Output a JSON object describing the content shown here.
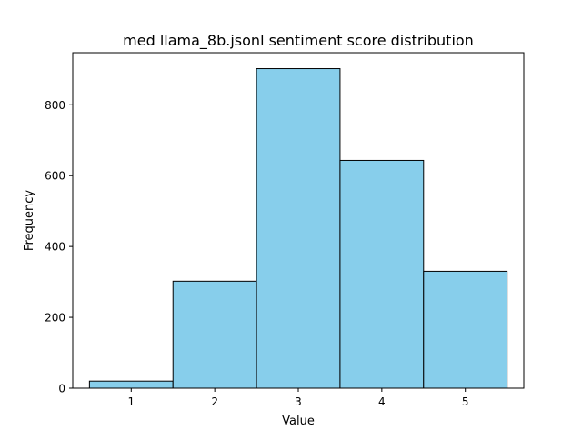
{
  "chart_data": {
    "type": "bar",
    "title": "med llama_8b.jsonl sentiment score distribution",
    "xlabel": "Value",
    "ylabel": "Frequency",
    "categories": [
      "1",
      "2",
      "3",
      "4",
      "5"
    ],
    "values": [
      20,
      302,
      902,
      643,
      330
    ],
    "xlim": [
      0.3,
      5.7
    ],
    "ylim": [
      0,
      947
    ],
    "yticks": [
      0,
      200,
      400,
      600,
      800
    ],
    "xticks": [
      1,
      2,
      3,
      4,
      5
    ],
    "grid": false,
    "colors": {
      "bar_fill": "#87ceeb",
      "bar_edge": "#000000"
    }
  }
}
